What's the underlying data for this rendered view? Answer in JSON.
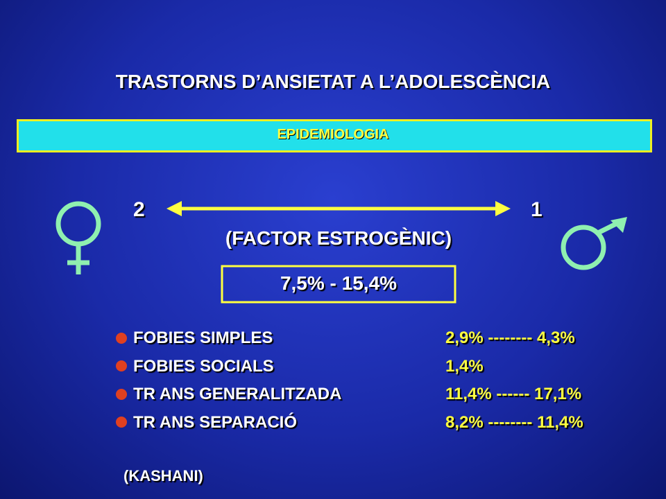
{
  "title": "TRASTORNS D’ANSIETAT A L’ADOLESCÈNCIA",
  "banner": "EPIDEMIOLOGIA",
  "ratio": {
    "female": "2",
    "male": "1",
    "factor": "(FACTOR ESTROGÈNIC)"
  },
  "range": "7,5% - 15,4%",
  "items": [
    {
      "label": "FOBIES SIMPLES",
      "value": "2,9% -------- 4,3%"
    },
    {
      "label": "FOBIES SOCIALS",
      "value": "1,4%"
    },
    {
      "label": "TR ANS GENERALITZADA",
      "value": "11,4% ------ 17,1%"
    },
    {
      "label": "TR ANS SEPARACIÓ",
      "value": "8,2% -------- 11,4%"
    }
  ],
  "source": "(KASHANI)"
}
